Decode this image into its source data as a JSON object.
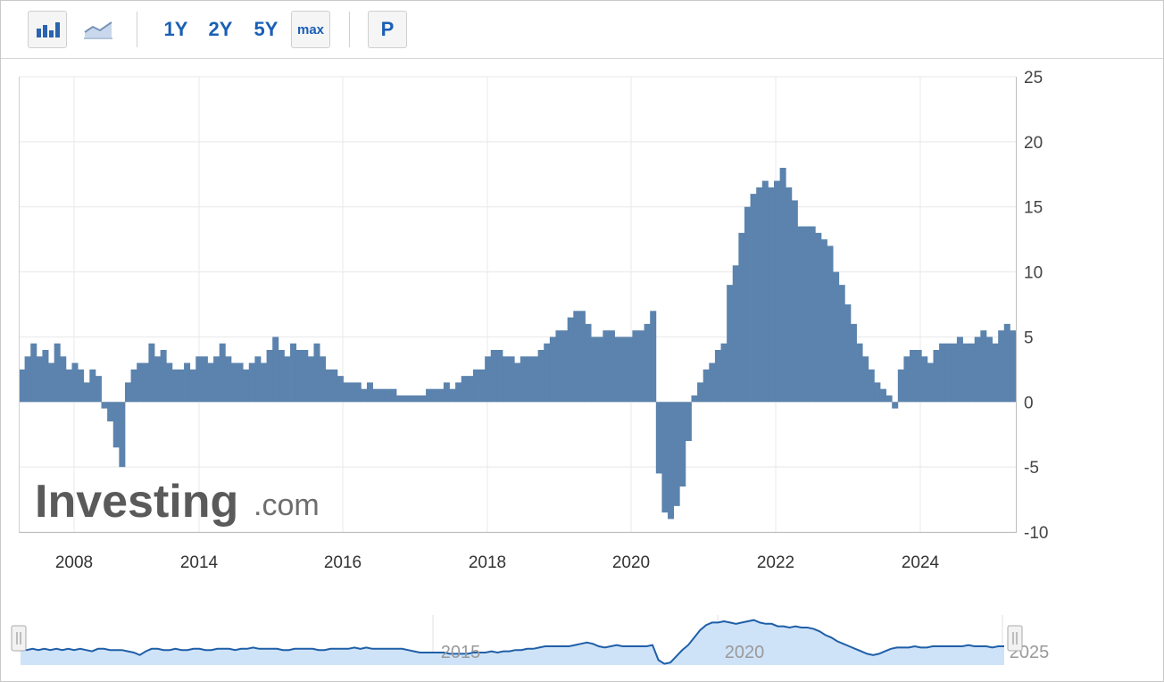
{
  "toolbar": {
    "bar_chart_icon": "bar-chart-icon",
    "line_chart_icon": "line-chart-icon",
    "range_buttons": [
      "1Y",
      "2Y",
      "5Y",
      "max"
    ],
    "p_button": "P"
  },
  "watermark": {
    "brand": "Investing",
    "suffix": ".com"
  },
  "colors": {
    "bar": "#5b83ad",
    "nav_line": "#1f5fa8",
    "nav_fill": "#cfe3f8",
    "accent": "#1a5fb4"
  },
  "chart_data": {
    "type": "bar",
    "ylim": [
      -10,
      25
    ],
    "y_ticks": [
      "25",
      "20",
      "15",
      "10",
      "5",
      "0",
      "-5",
      "-10"
    ],
    "x_tick_labels": [
      "2008",
      "2014",
      "2016",
      "2018",
      "2020",
      "2022",
      "2024"
    ],
    "values": [
      2.5,
      3.5,
      4.5,
      3.5,
      4.0,
      3.0,
      4.5,
      3.5,
      2.5,
      3.0,
      2.5,
      1.5,
      2.5,
      2.0,
      -0.5,
      -1.5,
      -3.5,
      -5.0,
      1.5,
      2.5,
      3.0,
      3.0,
      4.5,
      3.5,
      4.0,
      3.0,
      2.5,
      2.5,
      3.0,
      2.5,
      3.5,
      3.5,
      3.0,
      3.5,
      4.5,
      3.5,
      3.0,
      3.0,
      2.5,
      3.0,
      3.5,
      3.0,
      4.0,
      5.0,
      4.0,
      3.5,
      4.5,
      4.0,
      4.0,
      3.5,
      4.5,
      3.5,
      2.5,
      2.5,
      2.0,
      1.5,
      1.5,
      1.5,
      1.0,
      1.5,
      1.0,
      1.0,
      1.0,
      1.0,
      0.5,
      0.5,
      0.5,
      0.5,
      0.5,
      1.0,
      1.0,
      1.0,
      1.5,
      1.0,
      1.5,
      2.0,
      2.0,
      2.5,
      2.5,
      3.5,
      4.0,
      4.0,
      3.5,
      3.5,
      3.0,
      3.5,
      3.5,
      3.5,
      4.0,
      4.5,
      5.0,
      5.5,
      5.5,
      6.5,
      7.0,
      7.0,
      6.0,
      5.0,
      5.0,
      5.5,
      5.5,
      5.0,
      5.0,
      5.0,
      5.5,
      5.5,
      6.0,
      7.0,
      -5.5,
      -8.5,
      -9.0,
      -8.0,
      -6.5,
      -3.0,
      0.5,
      1.5,
      2.5,
      3.0,
      4.0,
      4.5,
      9.0,
      10.5,
      13.0,
      15.0,
      16.0,
      16.5,
      17.0,
      16.5,
      17.0,
      18.0,
      16.5,
      15.5,
      13.5,
      13.5,
      13.5,
      13.0,
      12.5,
      12.0,
      10.0,
      9.0,
      7.5,
      6.0,
      4.5,
      3.5,
      2.5,
      1.5,
      1.0,
      0.5,
      -0.5,
      2.5,
      3.5,
      4.0,
      4.0,
      3.5,
      3.0,
      4.0,
      4.5,
      4.5,
      4.5,
      5.0,
      4.5,
      4.5,
      5.0,
      5.5,
      5.0,
      4.5,
      5.5,
      6.0,
      5.5
    ]
  },
  "navigator": {
    "labels": [
      "2015",
      "2020",
      "2025"
    ],
    "values": [
      2.5,
      2.0,
      2.5,
      2.0,
      2.5,
      2.0,
      2.5,
      2.0,
      2.5,
      2.0,
      2.5,
      2.0,
      1.5,
      2.5,
      2.5,
      2.0,
      2.0,
      2.0,
      1.5,
      1.0,
      0.0,
      1.5,
      2.5,
      2.5,
      2.0,
      2.0,
      2.5,
      2.0,
      2.0,
      2.5,
      2.5,
      2.0,
      2.0,
      2.5,
      2.5,
      2.5,
      2.0,
      2.5,
      2.5,
      3.0,
      2.5,
      2.5,
      2.5,
      2.5,
      2.0,
      2.0,
      2.5,
      2.5,
      2.5,
      2.5,
      2.0,
      2.0,
      2.5,
      2.5,
      2.5,
      2.5,
      3.0,
      2.5,
      3.0,
      2.5,
      2.5,
      2.5,
      2.5,
      2.5,
      2.5,
      2.0,
      1.5,
      1.0,
      1.0,
      1.0,
      1.0,
      1.0,
      0.5,
      0.5,
      0.5,
      0.5,
      1.0,
      1.0,
      1.0,
      1.5,
      1.0,
      1.5,
      1.5,
      2.0,
      2.0,
      2.5,
      2.5,
      3.0,
      3.5,
      3.5,
      3.5,
      3.5,
      3.5,
      4.0,
      4.5,
      5.0,
      4.5,
      3.5,
      3.0,
      3.5,
      4.0,
      3.5,
      3.5,
      3.5,
      3.5,
      3.5,
      4.0,
      -2.0,
      -3.5,
      -3.0,
      -0.5,
      2.0,
      4.0,
      7.0,
      10.0,
      12.0,
      13.0,
      13.0,
      13.5,
      13.0,
      12.5,
      13.0,
      13.5,
      14.0,
      13.0,
      12.5,
      12.5,
      11.5,
      11.5,
      11.0,
      11.5,
      11.0,
      11.0,
      10.5,
      9.5,
      8.0,
      7.0,
      5.5,
      4.5,
      3.5,
      2.5,
      1.5,
      0.5,
      0.0,
      0.5,
      1.5,
      2.5,
      3.0,
      3.0,
      3.0,
      3.5,
      3.0,
      3.0,
      3.5,
      3.5,
      3.5,
      3.5,
      3.5,
      3.5,
      4.0,
      3.5,
      3.5,
      3.5,
      3.0,
      3.5,
      3.5
    ]
  }
}
